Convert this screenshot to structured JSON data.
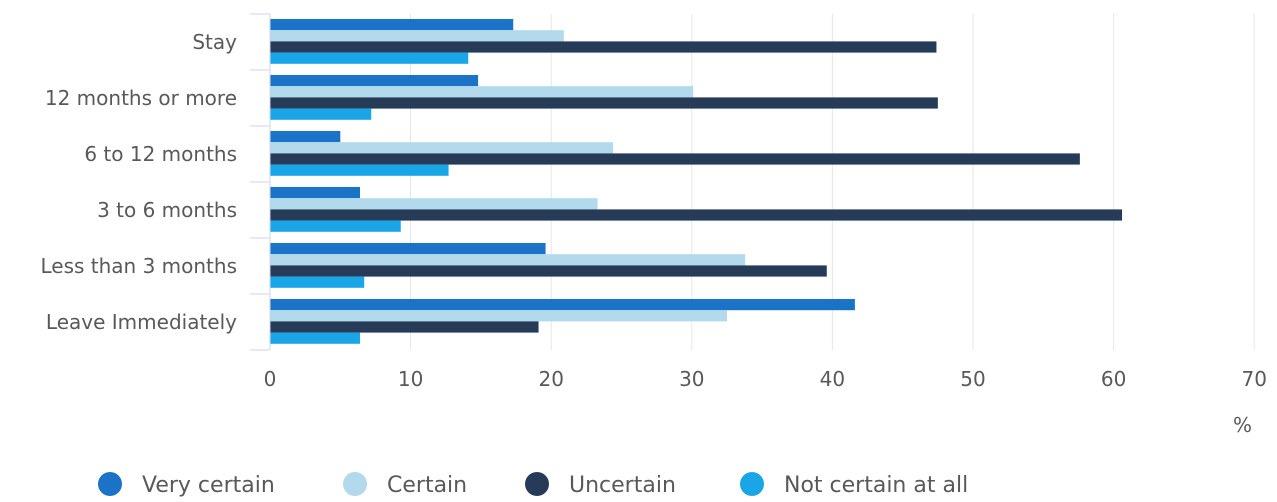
{
  "chart_data": {
    "type": "bar",
    "orientation": "horizontal",
    "categories": [
      "Stay",
      "12 months or more",
      "6 to 12 months",
      "3 to 6 months",
      "Less than 3 months",
      "Leave Immediately"
    ],
    "series": [
      {
        "name": "Very certain",
        "color": "#1b73c7",
        "values": [
          17.3,
          14.8,
          5.0,
          6.4,
          19.6,
          41.6
        ]
      },
      {
        "name": "Certain",
        "color": "#b2d9ec",
        "values": [
          20.9,
          30.1,
          24.4,
          23.3,
          33.8,
          32.5
        ]
      },
      {
        "name": "Uncertain",
        "color": "#253b57",
        "values": [
          47.4,
          47.5,
          57.6,
          60.6,
          39.6,
          19.1
        ]
      },
      {
        "name": "Not certain at all",
        "color": "#1aa6e6",
        "values": [
          14.1,
          7.2,
          12.7,
          9.3,
          6.7,
          6.4
        ]
      }
    ],
    "x_ticks": [
      0,
      10,
      20,
      30,
      40,
      50,
      60,
      70
    ],
    "xlim": [
      0,
      70
    ],
    "xlabel": "%",
    "grid": "vertical",
    "legend_position": "bottom-left"
  }
}
